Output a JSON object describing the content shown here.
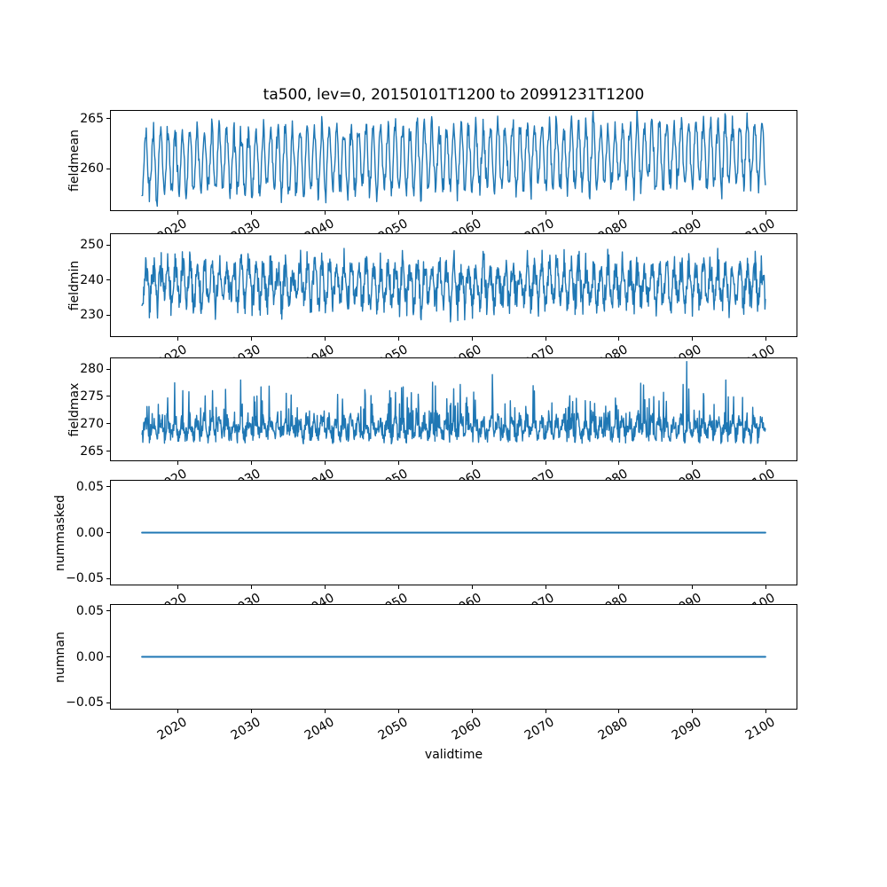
{
  "chart_data": {
    "type": "line",
    "title": "ta500, lev=0, 20150101T1200 to 20991231T1200",
    "xlabel": "validtime",
    "x_ticks": [
      2020,
      2030,
      2040,
      2050,
      2060,
      2070,
      2080,
      2090,
      2100
    ],
    "xlim": [
      2010.75,
      2104.25
    ],
    "x_data_range": [
      2015.0,
      2100.0
    ],
    "line_color": "#1f77b4",
    "grid": false,
    "legend": "none",
    "subplots": [
      {
        "ylabel": "fieldmean",
        "ylim": [
          255.8,
          265.85
        ],
        "yticks": [
          {
            "v": 260,
            "label": "260"
          },
          {
            "v": 265,
            "label": "265"
          }
        ],
        "series": {
          "kind": "seasonal",
          "base": 260.6,
          "amp": 3.1,
          "amp_jitter": 0.9,
          "noise": 1.8,
          "phase": 0.28,
          "trend": 0.012,
          "points_per_year": 14,
          "seed": 42,
          "approx_range": [
            256.3,
            266.0
          ]
        }
      },
      {
        "ylabel": "fieldmin",
        "ylim": [
          223.7,
          253.3
        ],
        "yticks": [
          {
            "v": 230,
            "label": "230"
          },
          {
            "v": 240,
            "label": "240"
          },
          {
            "v": 250,
            "label": "250"
          }
        ],
        "series": {
          "kind": "seasonal",
          "base": 238.8,
          "amp": 5.2,
          "amp_jitter": 2.2,
          "noise": 7.5,
          "phase": 0.3,
          "trend": 0,
          "points_per_year": 18,
          "seed": 7,
          "clip": [
            226.8,
            251.4
          ],
          "approx_range": [
            226.8,
            251.4
          ]
        }
      },
      {
        "ylabel": "fieldmax",
        "ylim": [
          263.2,
          282.1
        ],
        "yticks": [
          {
            "v": 265,
            "label": "265"
          },
          {
            "v": 270,
            "label": "270"
          },
          {
            "v": 275,
            "label": "275"
          },
          {
            "v": 280,
            "label": "280"
          }
        ],
        "series": {
          "kind": "spiky",
          "base": 269.2,
          "amp": 1.4,
          "noise": 3.2,
          "phase": 0.25,
          "spike_prob": 0.09,
          "spike_base": 2.0,
          "spike_extra": 5.0,
          "points_per_year": 18,
          "seed": 13,
          "clip": [
            265.6,
            281.6
          ],
          "outliers": [
            [
              2031.2,
              276.8
            ],
            [
              2055.0,
              277.0
            ],
            [
              2062.8,
              279.1
            ],
            [
              2083.0,
              277.5
            ],
            [
              2089.3,
              281.5
            ],
            [
              2094.6,
              278.1
            ]
          ],
          "approx_range": [
            265.6,
            281.5
          ]
        }
      },
      {
        "ylabel": "nummasked",
        "ylim": [
          -0.0575,
          0.0575
        ],
        "yticks": [
          {
            "v": 0.05,
            "label": "0.05"
          },
          {
            "v": 0.0,
            "label": "0.00"
          },
          {
            "v": -0.05,
            "label": "−0.05"
          }
        ],
        "series": {
          "kind": "constant",
          "value": 0.0
        }
      },
      {
        "ylabel": "numnan",
        "ylim": [
          -0.0575,
          0.0575
        ],
        "yticks": [
          {
            "v": 0.05,
            "label": "0.05"
          },
          {
            "v": 0.0,
            "label": "0.00"
          },
          {
            "v": -0.05,
            "label": "−0.05"
          }
        ],
        "series": {
          "kind": "constant",
          "value": 0.0
        }
      }
    ]
  }
}
